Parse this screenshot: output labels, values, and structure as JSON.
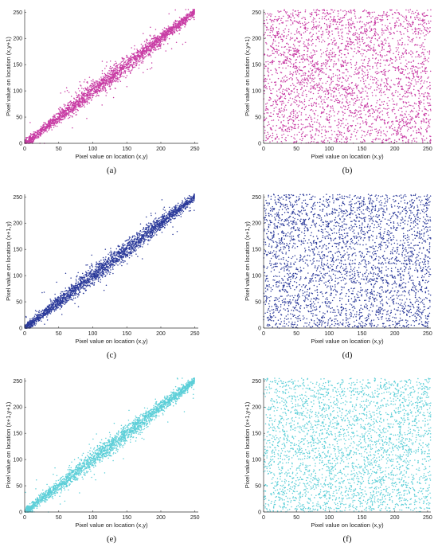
{
  "colors": {
    "magenta": "#c83ca4",
    "navy": "#2b3a9a",
    "cyan": "#5dcfd8"
  },
  "chart_data": [
    {
      "id": "a",
      "caption": "(a)",
      "type": "scatter",
      "pattern": "diagonal",
      "color": "#c83ca4",
      "xlabel": "Pixel value on location (x,y)",
      "ylabel": "Pixel value on location (x,y+1)",
      "xlim": [
        0,
        255
      ],
      "ylim": [
        0,
        255
      ],
      "xticks": [
        "0",
        "50",
        "100",
        "150",
        "200",
        "250"
      ],
      "yticks": [
        "0",
        "50",
        "100",
        "150",
        "200",
        "250"
      ]
    },
    {
      "id": "b",
      "caption": "(b)",
      "type": "scatter",
      "pattern": "uniform-lattice",
      "color": "#c83ca4",
      "xlabel": "Pixel value on location (x,y)",
      "ylabel": "Pixel value on location (x,y+1)",
      "xlim": [
        0,
        255
      ],
      "ylim": [
        0,
        255
      ],
      "xticks": [
        "0",
        "50",
        "100",
        "150",
        "200",
        "250"
      ],
      "yticks": [
        "0",
        "50",
        "100",
        "150",
        "200",
        "250"
      ]
    },
    {
      "id": "c",
      "caption": "(c)",
      "type": "scatter",
      "pattern": "diagonal",
      "color": "#2b3a9a",
      "xlabel": "Pixel value on location (x,y)",
      "ylabel": "Pixel value on location (x+1,y)",
      "xlim": [
        0,
        255
      ],
      "ylim": [
        0,
        255
      ],
      "xticks": [
        "0",
        "50",
        "100",
        "150",
        "200",
        "250"
      ],
      "yticks": [
        "0",
        "50",
        "100",
        "150",
        "200",
        "250"
      ]
    },
    {
      "id": "d",
      "caption": "(d)",
      "type": "scatter",
      "pattern": "uniform",
      "color": "#2b3a9a",
      "xlabel": "Pixel value on location (x,y)",
      "ylabel": "Pixel value on location (x+1,y)",
      "xlim": [
        0,
        255
      ],
      "ylim": [
        0,
        255
      ],
      "xticks": [
        "0",
        "50",
        "100",
        "150",
        "200",
        "250"
      ],
      "yticks": [
        "0",
        "50",
        "100",
        "150",
        "200",
        "250"
      ]
    },
    {
      "id": "e",
      "caption": "(e)",
      "type": "scatter",
      "pattern": "diagonal",
      "color": "#5dcfd8",
      "xlabel": "Pixel value on location (x,y)",
      "ylabel": "Pixel value on location (x+1,y+1)",
      "xlim": [
        0,
        255
      ],
      "ylim": [
        0,
        255
      ],
      "xticks": [
        "0",
        "50",
        "100",
        "150",
        "200",
        "250"
      ],
      "yticks": [
        "0",
        "50",
        "100",
        "150",
        "200",
        "250"
      ]
    },
    {
      "id": "f",
      "caption": "(f)",
      "type": "scatter",
      "pattern": "uniform",
      "color": "#5dcfd8",
      "xlabel": "Pixel value on location (x,y)",
      "ylabel": "Pixel value on location (x+1,y+1)",
      "xlim": [
        0,
        255
      ],
      "ylim": [
        0,
        255
      ],
      "xticks": [
        "0",
        "50",
        "100",
        "150",
        "200",
        "250"
      ],
      "yticks": [
        "0",
        "50",
        "100",
        "150",
        "200",
        "250"
      ]
    }
  ]
}
